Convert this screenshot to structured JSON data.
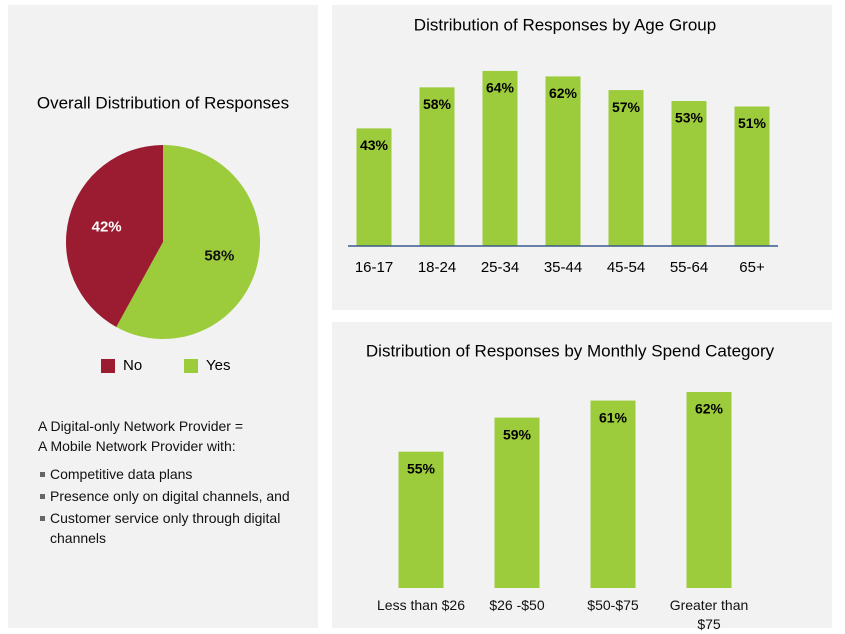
{
  "chart_data": [
    {
      "type": "pie",
      "title": "Overall Distribution of Responses",
      "categories": [
        "No",
        "Yes"
      ],
      "values": [
        42,
        58
      ],
      "value_labels": [
        "42%",
        "58%"
      ],
      "colors": [
        "#9b1c31",
        "#9ccb3b"
      ],
      "legend": "bottom"
    },
    {
      "type": "bar",
      "title": "Distribution of Responses by Age Group",
      "categories": [
        "16-17",
        "18-24",
        "25-34",
        "35-44",
        "45-54",
        "55-64",
        "65+"
      ],
      "values": [
        43,
        58,
        64,
        62,
        57,
        53,
        51
      ],
      "value_labels": [
        "43%",
        "58%",
        "64%",
        "62%",
        "57%",
        "53%",
        "51%"
      ],
      "color": "#9ccb3b",
      "ylim": [
        0,
        68
      ]
    },
    {
      "type": "bar",
      "title": "Distribution of Responses by Monthly Spend Category",
      "categories": [
        "Less than $26",
        "$26 -$50",
        "$50-$75",
        "Greater than $75"
      ],
      "values": [
        55,
        59,
        61,
        62
      ],
      "value_labels": [
        "55%",
        "59%",
        "61%",
        "62%"
      ],
      "color": "#9ccb3b",
      "ylim": [
        39,
        64
      ]
    }
  ],
  "notes": {
    "heading": [
      "A Digital-only Network Provider =",
      "A Mobile Network Provider with:"
    ],
    "bullets": [
      "Competitive data plans",
      "Presence only on digital channels, and",
      "Customer service only through digital channels"
    ]
  }
}
